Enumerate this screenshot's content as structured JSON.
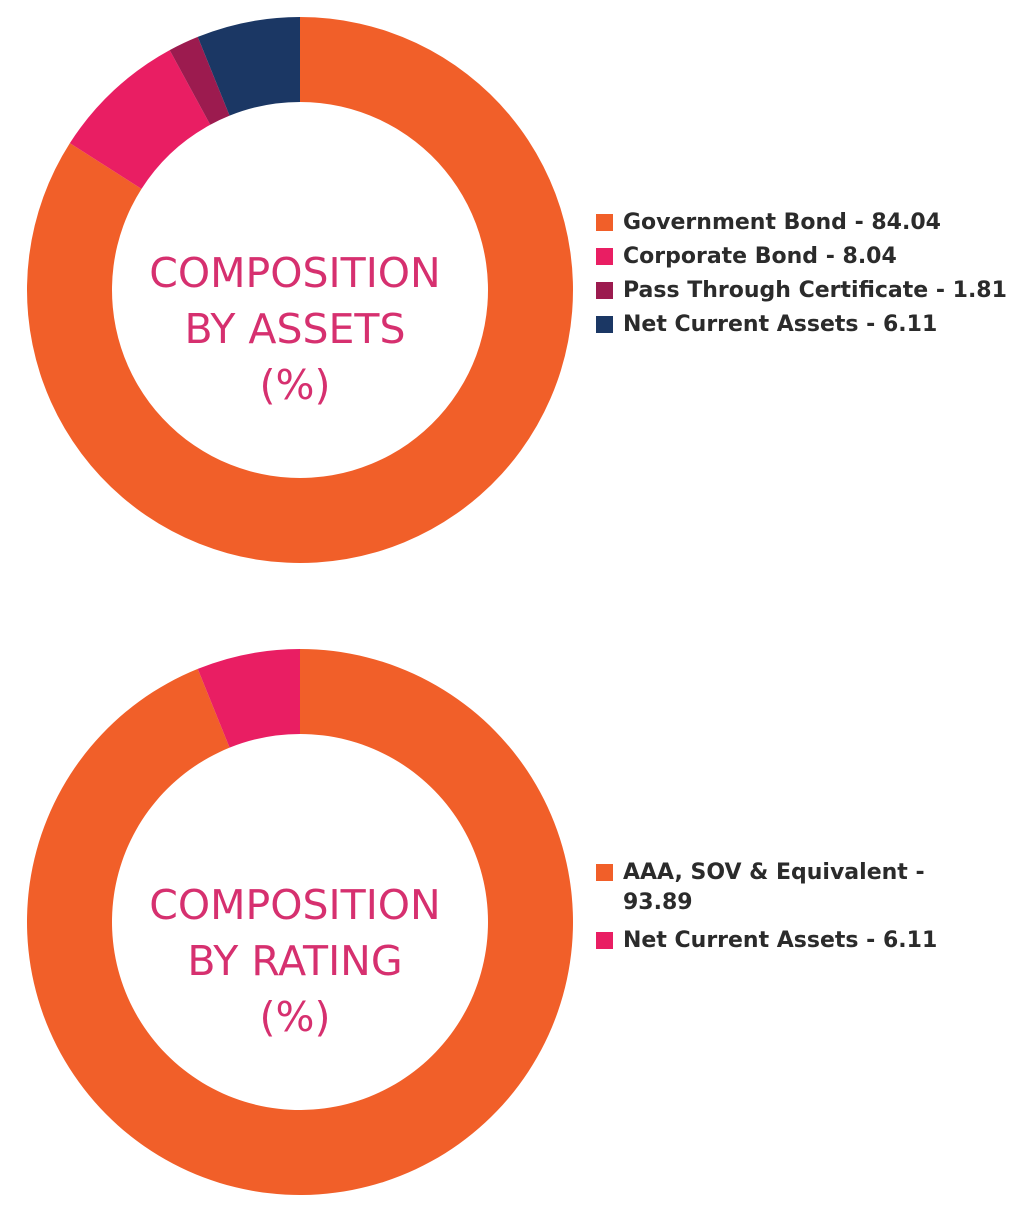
{
  "chart_data": [
    {
      "type": "pie",
      "center_label": [
        "COMPOSITION",
        "BY ASSETS",
        "(%)"
      ],
      "series": [
        {
          "name": "Government Bond",
          "value": 84.04,
          "color": "#f15f29",
          "legend_label": "Government Bond - 84.04"
        },
        {
          "name": "Corporate Bond",
          "value": 8.04,
          "color": "#e91e63",
          "legend_label": "Corporate Bond - 8.04"
        },
        {
          "name": "Pass Through Certificate",
          "value": 1.81,
          "color": "#9c1b4f",
          "legend_label": "Pass Through Certificate - 1.81"
        },
        {
          "name": "Net Current Assets",
          "value": 6.11,
          "color": "#1b3764",
          "legend_label": "Net Current Assets - 6.11"
        }
      ],
      "legend_position": "right"
    },
    {
      "type": "pie",
      "center_label": [
        "COMPOSITION",
        "BY RATING",
        "(%)"
      ],
      "series": [
        {
          "name": "AAA, SOV & Equivalent",
          "value": 93.89,
          "color": "#f15f29",
          "legend_label": "AAA, SOV & Equivalent - 93.89"
        },
        {
          "name": "Net Current Assets",
          "value": 6.11,
          "color": "#e91e63",
          "legend_label": "Net Current Assets - 6.11"
        }
      ],
      "legend_position": "right"
    }
  ]
}
